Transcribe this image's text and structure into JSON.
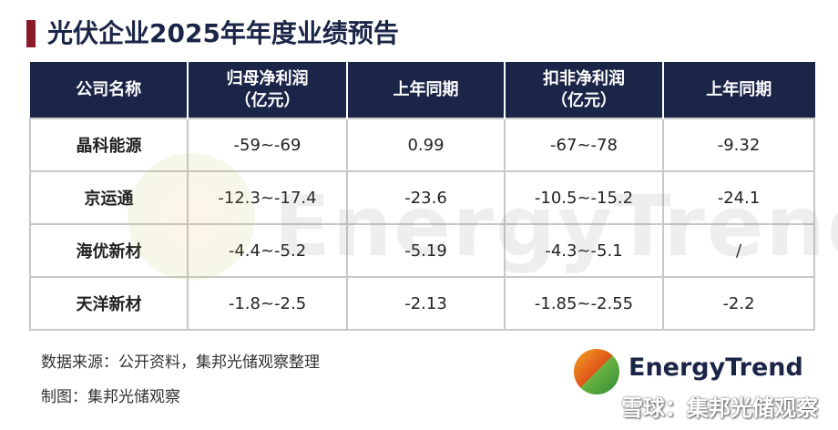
{
  "header": {
    "title": "光伏企业2025年年度业绩预告"
  },
  "table": {
    "columns": [
      [
        "公司名称"
      ],
      [
        "归母净利润",
        "（亿元）"
      ],
      [
        "上年同期"
      ],
      [
        "扣非净利润",
        "（亿元）"
      ],
      [
        "上年同期"
      ]
    ],
    "rows": [
      [
        "晶科能源",
        "-59~-69",
        "0.99",
        "-67~-78",
        "-9.32"
      ],
      [
        "京运通",
        "-12.3~-17.4",
        "-23.6",
        "-10.5~-15.2",
        "-24.1"
      ],
      [
        "海优新材",
        "-4.4~-5.2",
        "-5.19",
        "-4.3~-5.1",
        "/"
      ],
      [
        "天洋新材",
        "-1.8~-2.5",
        "-2.13",
        "-1.85~-2.55",
        "-2.2"
      ]
    ]
  },
  "footer": {
    "source": "数据来源：公开资料，集邦光储观察整理",
    "credit": "制图：集邦光储观察"
  },
  "logo": {
    "text": "EnergyTrend"
  },
  "watermark": {
    "background": "EnergyTrend",
    "caption": "雪球：集邦光储观察"
  }
}
